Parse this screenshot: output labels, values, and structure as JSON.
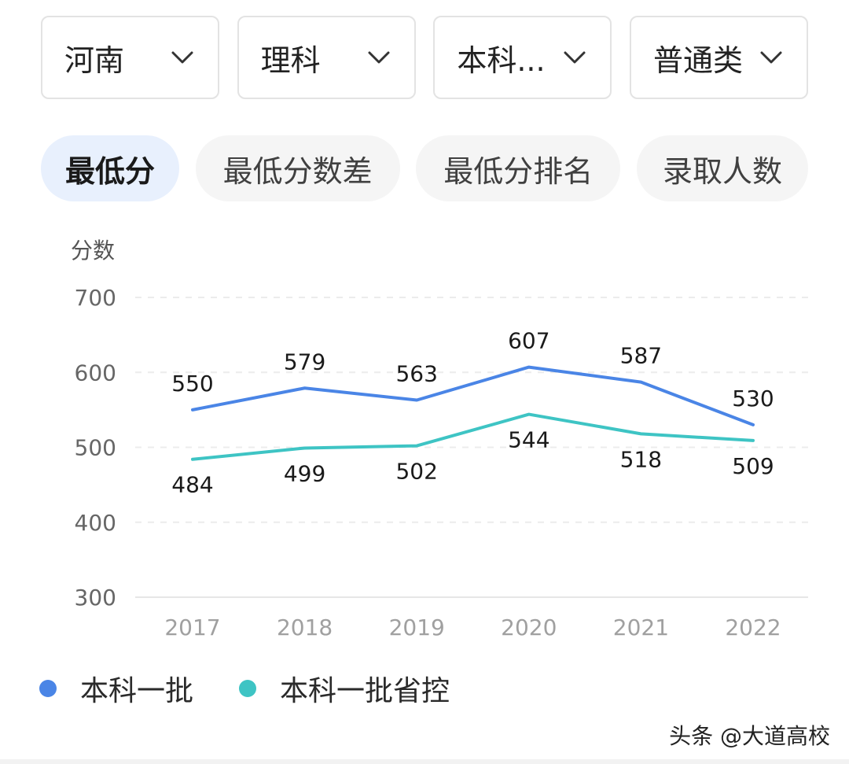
{
  "filters": [
    {
      "label": "河南"
    },
    {
      "label": "理科"
    },
    {
      "label": "本科..."
    },
    {
      "label": "普通类"
    }
  ],
  "tabs": [
    {
      "label": "最低分",
      "active": true
    },
    {
      "label": "最低分数差",
      "active": false
    },
    {
      "label": "最低分排名",
      "active": false
    },
    {
      "label": "录取人数",
      "active": false
    }
  ],
  "chart_data": {
    "type": "line",
    "ylabel": "分数",
    "xlabel": "",
    "ylim": [
      300,
      700
    ],
    "yticks": [
      300,
      400,
      500,
      600,
      700
    ],
    "grid": true,
    "categories": [
      "2017",
      "2018",
      "2019",
      "2020",
      "2021",
      "2022"
    ],
    "series": [
      {
        "name": "本科一批",
        "color": "#4a85e6",
        "values": [
          550,
          579,
          563,
          607,
          587,
          530
        ],
        "label_position": "above"
      },
      {
        "name": "本科一批省控",
        "color": "#3ec4c4",
        "values": [
          484,
          499,
          502,
          544,
          518,
          509
        ],
        "label_position": "below"
      }
    ],
    "legend_position": "bottom-left"
  },
  "watermark": "头条 @大道高校"
}
